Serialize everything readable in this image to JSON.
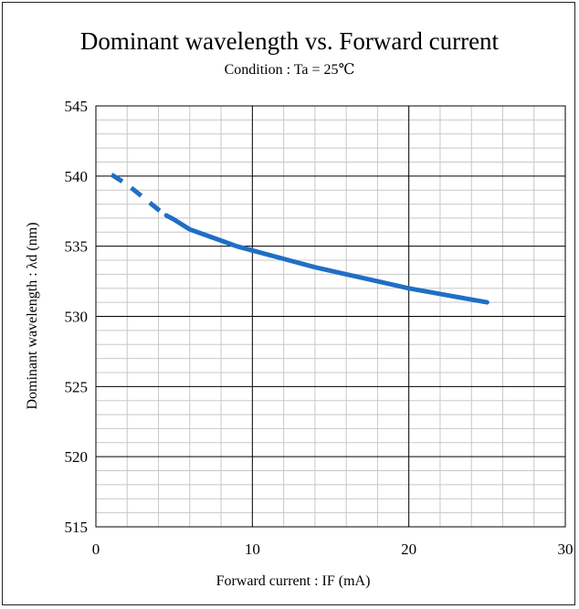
{
  "chart_data": {
    "type": "line",
    "title": "Dominant wavelength vs. Forward current",
    "subtitle": "Condition : Ta = 25℃",
    "xlabel": "Forward current : IF (mA)",
    "ylabel": "Dominant wavelength : λd (nm)",
    "xlim": [
      0,
      30
    ],
    "ylim": [
      515,
      545
    ],
    "x_ticks": [
      0,
      10,
      20,
      30
    ],
    "y_ticks": [
      515,
      520,
      525,
      530,
      535,
      540,
      545
    ],
    "x_minor_step": 2,
    "y_minor_step": 1,
    "grid": true,
    "series_color": "#1F6FC5",
    "series": [
      {
        "dashed_until_x": 4.5,
        "x": [
          1,
          2,
          3,
          4,
          4.5,
          5,
          6,
          7,
          8,
          9,
          10,
          12,
          14,
          16,
          18,
          20,
          22,
          24,
          25
        ],
        "values": [
          540.1,
          539.4,
          538.5,
          537.6,
          537.2,
          536.9,
          536.2,
          535.8,
          535.4,
          535.0,
          534.7,
          534.1,
          533.5,
          533.0,
          532.5,
          532.0,
          531.6,
          531.2,
          531.0
        ]
      }
    ]
  }
}
